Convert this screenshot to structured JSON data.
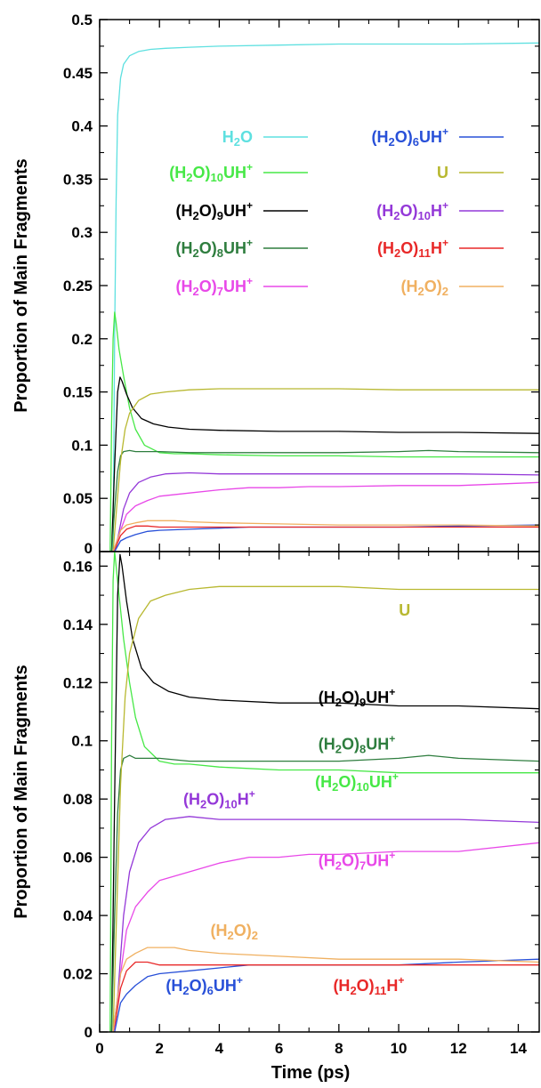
{
  "chart_data": [
    {
      "type": "line",
      "panel": "top",
      "xlabel": "",
      "ylabel": "Proportion of Main Fragments",
      "xlim": [
        0,
        14.7
      ],
      "ylim": [
        0,
        0.5
      ],
      "yticks": [
        "0",
        "0.05",
        "0.1",
        "0.15",
        "0.2",
        "0.25",
        "0.3",
        "0.35",
        "0.4",
        "0.45",
        "0.5"
      ],
      "ytick_values": [
        0,
        0.05,
        0.1,
        0.15,
        0.2,
        0.25,
        0.3,
        0.35,
        0.4,
        0.45,
        0.5
      ],
      "grid": false,
      "legend_position": "top (two columns)",
      "legend": [
        {
          "key": "h2o",
          "base": "H",
          "sub": "2",
          "tail": "O",
          "sup": "",
          "color": "#5ee0e0"
        },
        {
          "key": "h2o10uh",
          "base": "(H",
          "sub": "2",
          "tail": "O)",
          "sub2": "10",
          "tail2": "UH",
          "sup": "+",
          "color": "#46e846"
        },
        {
          "key": "h2o9uh",
          "base": "(H",
          "sub": "2",
          "tail": "O)",
          "sub2": "9",
          "tail2": "UH",
          "sup": "+",
          "color": "#000000"
        },
        {
          "key": "h2o8uh",
          "base": "(H",
          "sub": "2",
          "tail": "O)",
          "sub2": "8",
          "tail2": "UH",
          "sup": "+",
          "color": "#2e7d3e"
        },
        {
          "key": "h2o7uh",
          "base": "(H",
          "sub": "2",
          "tail": "O)",
          "sub2": "7",
          "tail2": "UH",
          "sup": "+",
          "color": "#e848e8"
        },
        {
          "key": "h2o6uh",
          "base": "(H",
          "sub": "2",
          "tail": "O)",
          "sub2": "6",
          "tail2": "UH",
          "sup": "+",
          "color": "#2850d8"
        },
        {
          "key": "u",
          "base": "U",
          "sub": "",
          "tail": "",
          "sup": "",
          "color": "#b8b830"
        },
        {
          "key": "h2o10h",
          "base": "(H",
          "sub": "2",
          "tail": "O)",
          "sub2": "10",
          "tail2": "H",
          "sup": "+",
          "color": "#9438d8"
        },
        {
          "key": "h2o11h",
          "base": "(H",
          "sub": "2",
          "tail": "O)",
          "sub2": "11",
          "tail2": "H",
          "sup": "+",
          "color": "#e82828"
        },
        {
          "key": "h2o2",
          "base": "(H",
          "sub": "2",
          "tail": "O)",
          "sub2": "2",
          "tail2": "",
          "sup": "",
          "color": "#f0b060"
        }
      ],
      "series": [
        {
          "key": "h2o",
          "color": "#5ee0e0",
          "x": [
            0.45,
            0.5,
            0.55,
            0.6,
            0.7,
            0.8,
            1.0,
            1.3,
            1.7,
            2.2,
            3,
            4,
            6,
            8,
            10,
            12,
            14.7
          ],
          "y": [
            0,
            0.2,
            0.33,
            0.41,
            0.445,
            0.458,
            0.466,
            0.47,
            0.472,
            0.473,
            0.474,
            0.475,
            0.476,
            0.477,
            0.477,
            0.477,
            0.478
          ]
        },
        {
          "key": "h2o10uh",
          "color": "#46e846",
          "x": [
            0.35,
            0.4,
            0.45,
            0.5,
            0.55,
            0.65,
            0.8,
            1.0,
            1.2,
            1.5,
            2.0,
            2.5,
            3,
            4,
            6,
            8,
            10,
            12,
            14.7
          ],
          "y": [
            0,
            0.12,
            0.2,
            0.225,
            0.215,
            0.19,
            0.165,
            0.135,
            0.115,
            0.1,
            0.093,
            0.092,
            0.092,
            0.091,
            0.09,
            0.09,
            0.089,
            0.089,
            0.089
          ]
        },
        {
          "key": "h2o9uh",
          "color": "#000000",
          "x": [
            0.4,
            0.5,
            0.6,
            0.68,
            0.75,
            0.9,
            1.1,
            1.4,
            1.8,
            2.3,
            3,
            4,
            6,
            8,
            10,
            12,
            14.7
          ],
          "y": [
            0,
            0.08,
            0.15,
            0.164,
            0.16,
            0.148,
            0.135,
            0.125,
            0.12,
            0.117,
            0.115,
            0.114,
            0.113,
            0.113,
            0.112,
            0.112,
            0.111
          ]
        },
        {
          "key": "h2o8uh",
          "color": "#2e7d3e",
          "x": [
            0.4,
            0.5,
            0.6,
            0.7,
            0.8,
            1.0,
            1.2,
            1.5,
            2,
            3,
            4,
            6,
            8,
            10,
            11,
            12,
            14.7
          ],
          "y": [
            0,
            0.04,
            0.075,
            0.09,
            0.094,
            0.095,
            0.094,
            0.094,
            0.094,
            0.093,
            0.093,
            0.093,
            0.093,
            0.094,
            0.095,
            0.094,
            0.093
          ]
        },
        {
          "key": "h2o7uh",
          "color": "#e848e8",
          "x": [
            0.5,
            0.7,
            0.9,
            1.2,
            1.6,
            2,
            3,
            4,
            5,
            6,
            7,
            8,
            10,
            12,
            14.7
          ],
          "y": [
            0,
            0.02,
            0.035,
            0.043,
            0.048,
            0.052,
            0.055,
            0.058,
            0.06,
            0.06,
            0.061,
            0.061,
            0.062,
            0.062,
            0.065
          ]
        },
        {
          "key": "h2o6uh",
          "color": "#2850d8",
          "x": [
            0.5,
            0.7,
            0.9,
            1.2,
            1.6,
            2,
            3,
            4,
            5,
            6,
            8,
            10,
            12,
            14.7
          ],
          "y": [
            0,
            0.01,
            0.013,
            0.016,
            0.019,
            0.02,
            0.021,
            0.022,
            0.023,
            0.023,
            0.023,
            0.023,
            0.024,
            0.025
          ]
        },
        {
          "key": "u",
          "color": "#b8b830",
          "x": [
            0.45,
            0.55,
            0.7,
            0.85,
            1.0,
            1.3,
            1.7,
            2.2,
            3,
            4,
            5,
            6,
            8,
            10,
            12,
            14.7
          ],
          "y": [
            0,
            0.035,
            0.085,
            0.115,
            0.13,
            0.142,
            0.148,
            0.15,
            0.152,
            0.153,
            0.153,
            0.153,
            0.153,
            0.152,
            0.152,
            0.152
          ]
        },
        {
          "key": "h2o10h",
          "color": "#9438d8",
          "x": [
            0.45,
            0.6,
            0.8,
            1.0,
            1.3,
            1.7,
            2.2,
            3,
            4,
            6,
            8,
            10,
            12,
            14.7
          ],
          "y": [
            0,
            0.012,
            0.04,
            0.055,
            0.065,
            0.07,
            0.073,
            0.074,
            0.073,
            0.073,
            0.073,
            0.073,
            0.073,
            0.072
          ]
        },
        {
          "key": "h2o11h",
          "color": "#e82828",
          "x": [
            0.45,
            0.55,
            0.7,
            0.9,
            1.2,
            1.6,
            2,
            3,
            4,
            6,
            8,
            10,
            12,
            14.7
          ],
          "y": [
            0,
            0.005,
            0.015,
            0.021,
            0.024,
            0.024,
            0.023,
            0.023,
            0.023,
            0.023,
            0.023,
            0.023,
            0.023,
            0.023
          ]
        },
        {
          "key": "h2o2",
          "color": "#f0b060",
          "x": [
            0.45,
            0.55,
            0.7,
            0.9,
            1.2,
            1.6,
            2,
            2.5,
            3,
            4,
            6,
            8,
            10,
            12,
            14.7
          ],
          "y": [
            0,
            0.008,
            0.02,
            0.025,
            0.027,
            0.029,
            0.029,
            0.029,
            0.028,
            0.027,
            0.026,
            0.025,
            0.025,
            0.025,
            0.024
          ]
        }
      ]
    },
    {
      "type": "line",
      "panel": "bottom",
      "xlabel": "Time (ps)",
      "ylabel": "Proportion of Main Fragments",
      "xlim": [
        0,
        14.7
      ],
      "ylim": [
        0,
        0.165
      ],
      "xticks": [
        "0",
        "2",
        "4",
        "6",
        "8",
        "10",
        "12",
        "14"
      ],
      "xtick_values": [
        0,
        2,
        4,
        6,
        8,
        10,
        12,
        14
      ],
      "yticks": [
        "0",
        "0.02",
        "0.04",
        "0.06",
        "0.08",
        "0.1",
        "0.12",
        "0.14",
        "0.16"
      ],
      "ytick_values": [
        0,
        0.02,
        0.04,
        0.06,
        0.08,
        0.1,
        0.12,
        0.14,
        0.16
      ],
      "grid": false,
      "annotations": [
        {
          "key": "u",
          "base": "U",
          "sub": "",
          "tail": "",
          "sub2": "",
          "tail2": "",
          "sup": "",
          "color": "#b8b830",
          "x": 10.2,
          "y": 0.143
        },
        {
          "key": "h2o9uh",
          "base": "(H",
          "sub": "2",
          "tail": "O)",
          "sub2": "9",
          "tail2": "UH",
          "sup": "+",
          "color": "#000000",
          "x": 8.6,
          "y": 0.113
        },
        {
          "key": "h2o8uh",
          "base": "(H",
          "sub": "2",
          "tail": "O)",
          "sub2": "8",
          "tail2": "UH",
          "sup": "+",
          "color": "#2e7d3e",
          "x": 8.6,
          "y": 0.097
        },
        {
          "key": "h2o10uh",
          "base": "(H",
          "sub": "2",
          "tail": "O)",
          "sub2": "10",
          "tail2": "UH",
          "sup": "+",
          "color": "#46e846",
          "x": 8.6,
          "y": 0.084
        },
        {
          "key": "h2o10h",
          "base": "(H",
          "sub": "2",
          "tail": "O)",
          "sub2": "10",
          "tail2": "H",
          "sup": "+",
          "color": "#9438d8",
          "x": 4.0,
          "y": 0.078
        },
        {
          "key": "h2o7uh",
          "base": "(H",
          "sub": "2",
          "tail": "O)",
          "sub2": "7",
          "tail2": "UH",
          "sup": "+",
          "color": "#e848e8",
          "x": 8.6,
          "y": 0.057
        },
        {
          "key": "h2o2",
          "base": "(H",
          "sub": "2",
          "tail": "O)",
          "sub2": "2",
          "tail2": "",
          "sup": "",
          "color": "#f0b060",
          "x": 4.5,
          "y": 0.033
        },
        {
          "key": "h2o6uh",
          "base": "(H",
          "sub": "2",
          "tail": "O)",
          "sub2": "6",
          "tail2": "UH",
          "sup": "+",
          "color": "#2850d8",
          "x": 3.5,
          "y": 0.014
        },
        {
          "key": "h2o11h",
          "base": "(H",
          "sub": "2",
          "tail": "O)",
          "sub2": "11",
          "tail2": "H",
          "sup": "+",
          "color": "#e82828",
          "x": 9.0,
          "y": 0.014
        }
      ],
      "series": [
        {
          "key": "h2o10uh",
          "color": "#46e846",
          "x": [
            0.35,
            0.4,
            0.45,
            0.5,
            0.55,
            0.65,
            0.8,
            1.0,
            1.2,
            1.5,
            2.0,
            2.5,
            3,
            4,
            6,
            8,
            10,
            12,
            14.7
          ],
          "y": [
            0,
            0.1,
            0.155,
            0.165,
            0.16,
            0.15,
            0.135,
            0.12,
            0.108,
            0.098,
            0.093,
            0.092,
            0.092,
            0.091,
            0.09,
            0.09,
            0.089,
            0.089,
            0.089
          ]
        },
        {
          "key": "h2o9uh",
          "color": "#000000",
          "x": [
            0.4,
            0.5,
            0.6,
            0.68,
            0.75,
            0.9,
            1.1,
            1.4,
            1.8,
            2.3,
            3,
            4,
            6,
            8,
            10,
            12,
            14.7
          ],
          "y": [
            0,
            0.08,
            0.15,
            0.164,
            0.16,
            0.148,
            0.135,
            0.125,
            0.12,
            0.117,
            0.115,
            0.114,
            0.113,
            0.113,
            0.112,
            0.112,
            0.111
          ]
        },
        {
          "key": "h2o8uh",
          "color": "#2e7d3e",
          "x": [
            0.4,
            0.5,
            0.6,
            0.7,
            0.8,
            1.0,
            1.2,
            1.5,
            2,
            3,
            4,
            6,
            8,
            10,
            11,
            12,
            14.7
          ],
          "y": [
            0,
            0.04,
            0.075,
            0.09,
            0.094,
            0.095,
            0.094,
            0.094,
            0.094,
            0.093,
            0.093,
            0.093,
            0.093,
            0.094,
            0.095,
            0.094,
            0.093
          ]
        },
        {
          "key": "h2o7uh",
          "color": "#e848e8",
          "x": [
            0.5,
            0.7,
            0.9,
            1.2,
            1.6,
            2,
            3,
            4,
            5,
            6,
            7,
            8,
            10,
            12,
            14.7
          ],
          "y": [
            0,
            0.02,
            0.035,
            0.043,
            0.048,
            0.052,
            0.055,
            0.058,
            0.06,
            0.06,
            0.061,
            0.061,
            0.062,
            0.062,
            0.065
          ]
        },
        {
          "key": "h2o6uh",
          "color": "#2850d8",
          "x": [
            0.5,
            0.7,
            0.9,
            1.2,
            1.6,
            2,
            3,
            4,
            5,
            6,
            8,
            10,
            12,
            14.7
          ],
          "y": [
            0,
            0.01,
            0.013,
            0.016,
            0.019,
            0.02,
            0.021,
            0.022,
            0.023,
            0.023,
            0.023,
            0.023,
            0.024,
            0.025
          ]
        },
        {
          "key": "u",
          "color": "#b8b830",
          "x": [
            0.45,
            0.55,
            0.7,
            0.85,
            1.0,
            1.3,
            1.7,
            2.2,
            3,
            4,
            5,
            6,
            8,
            10,
            12,
            14.7
          ],
          "y": [
            0,
            0.035,
            0.085,
            0.115,
            0.13,
            0.142,
            0.148,
            0.15,
            0.152,
            0.153,
            0.153,
            0.153,
            0.153,
            0.152,
            0.152,
            0.152
          ]
        },
        {
          "key": "h2o10h",
          "color": "#9438d8",
          "x": [
            0.45,
            0.6,
            0.8,
            1.0,
            1.3,
            1.7,
            2.2,
            3,
            4,
            6,
            8,
            10,
            12,
            14.7
          ],
          "y": [
            0,
            0.012,
            0.04,
            0.055,
            0.065,
            0.07,
            0.073,
            0.074,
            0.073,
            0.073,
            0.073,
            0.073,
            0.073,
            0.072
          ]
        },
        {
          "key": "h2o11h",
          "color": "#e82828",
          "x": [
            0.45,
            0.55,
            0.7,
            0.9,
            1.2,
            1.6,
            2,
            3,
            4,
            6,
            8,
            10,
            12,
            14.7
          ],
          "y": [
            0,
            0.005,
            0.015,
            0.021,
            0.024,
            0.024,
            0.023,
            0.023,
            0.023,
            0.023,
            0.023,
            0.023,
            0.023,
            0.023
          ]
        },
        {
          "key": "h2o2",
          "color": "#f0b060",
          "x": [
            0.45,
            0.55,
            0.7,
            0.9,
            1.2,
            1.6,
            2,
            2.5,
            3,
            4,
            6,
            8,
            10,
            12,
            14.7
          ],
          "y": [
            0,
            0.008,
            0.02,
            0.025,
            0.027,
            0.029,
            0.029,
            0.029,
            0.028,
            0.027,
            0.026,
            0.025,
            0.025,
            0.025,
            0.024
          ]
        }
      ]
    }
  ]
}
